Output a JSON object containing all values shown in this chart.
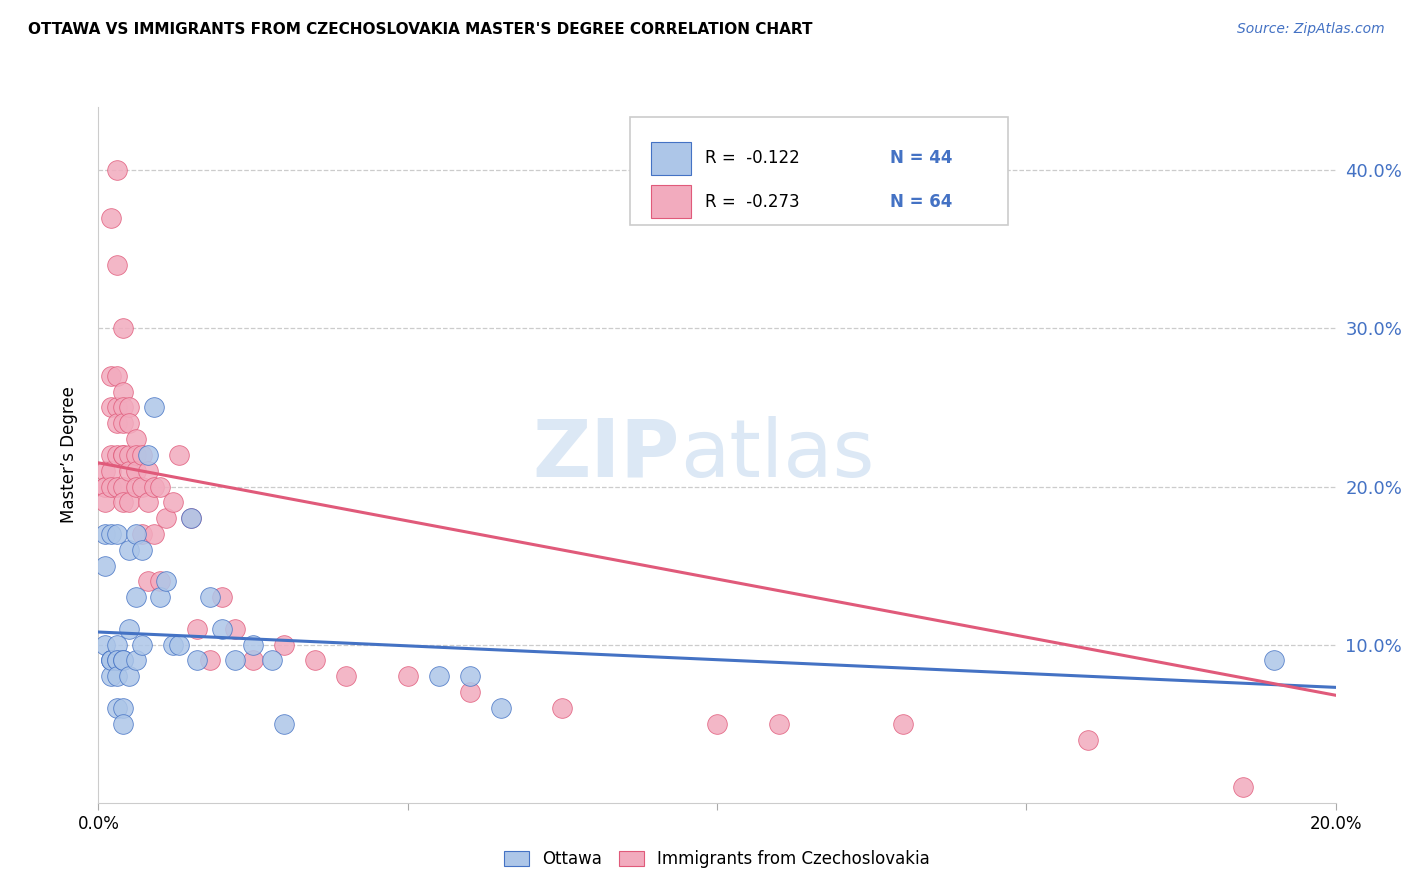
{
  "title": "OTTAWA VS IMMIGRANTS FROM CZECHOSLOVAKIA MASTER'S DEGREE CORRELATION CHART",
  "source": "Source: ZipAtlas.com",
  "ylabel": "Master’s Degree",
  "legend_label_blue": "Ottawa",
  "legend_label_pink": "Immigrants from Czechoslovakia",
  "xlim": [
    0.0,
    0.2
  ],
  "ylim": [
    0.0,
    0.44
  ],
  "yticks_right": [
    0.1,
    0.2,
    0.3,
    0.4
  ],
  "ytick_labels_right": [
    "10.0%",
    "20.0%",
    "30.0%",
    "40.0%"
  ],
  "color_blue_fill": "#adc6e8",
  "color_pink_fill": "#f2abbe",
  "color_blue_line": "#4472c4",
  "color_pink_line": "#e05a7a",
  "background_color": "#ffffff",
  "watermark_zip": "ZIP",
  "watermark_atlas": "atlas",
  "watermark_color": "#dce8f5",
  "blue_scatter_x": [
    0.001,
    0.001,
    0.001,
    0.002,
    0.002,
    0.002,
    0.002,
    0.002,
    0.003,
    0.003,
    0.003,
    0.003,
    0.003,
    0.003,
    0.004,
    0.004,
    0.004,
    0.004,
    0.005,
    0.005,
    0.005,
    0.006,
    0.006,
    0.006,
    0.007,
    0.007,
    0.008,
    0.009,
    0.01,
    0.011,
    0.012,
    0.013,
    0.015,
    0.016,
    0.018,
    0.02,
    0.022,
    0.025,
    0.028,
    0.03,
    0.055,
    0.06,
    0.065,
    0.19
  ],
  "blue_scatter_y": [
    0.17,
    0.15,
    0.1,
    0.17,
    0.09,
    0.09,
    0.08,
    0.09,
    0.17,
    0.09,
    0.1,
    0.09,
    0.08,
    0.06,
    0.09,
    0.09,
    0.06,
    0.05,
    0.16,
    0.11,
    0.08,
    0.17,
    0.13,
    0.09,
    0.16,
    0.1,
    0.22,
    0.25,
    0.13,
    0.14,
    0.1,
    0.1,
    0.18,
    0.09,
    0.13,
    0.11,
    0.09,
    0.1,
    0.09,
    0.05,
    0.08,
    0.08,
    0.06,
    0.09
  ],
  "pink_scatter_x": [
    0.001,
    0.001,
    0.001,
    0.001,
    0.002,
    0.002,
    0.002,
    0.002,
    0.002,
    0.002,
    0.003,
    0.003,
    0.003,
    0.003,
    0.003,
    0.003,
    0.003,
    0.004,
    0.004,
    0.004,
    0.004,
    0.004,
    0.004,
    0.004,
    0.004,
    0.005,
    0.005,
    0.005,
    0.005,
    0.005,
    0.006,
    0.006,
    0.006,
    0.006,
    0.007,
    0.007,
    0.007,
    0.008,
    0.008,
    0.008,
    0.009,
    0.009,
    0.01,
    0.01,
    0.011,
    0.012,
    0.013,
    0.015,
    0.016,
    0.018,
    0.02,
    0.022,
    0.025,
    0.03,
    0.035,
    0.04,
    0.05,
    0.06,
    0.075,
    0.1,
    0.11,
    0.13,
    0.16,
    0.185
  ],
  "pink_scatter_y": [
    0.21,
    0.2,
    0.2,
    0.19,
    0.37,
    0.27,
    0.25,
    0.22,
    0.21,
    0.2,
    0.4,
    0.34,
    0.27,
    0.25,
    0.24,
    0.22,
    0.2,
    0.3,
    0.26,
    0.25,
    0.24,
    0.22,
    0.22,
    0.2,
    0.19,
    0.25,
    0.24,
    0.22,
    0.21,
    0.19,
    0.23,
    0.22,
    0.21,
    0.2,
    0.22,
    0.2,
    0.17,
    0.21,
    0.19,
    0.14,
    0.2,
    0.17,
    0.2,
    0.14,
    0.18,
    0.19,
    0.22,
    0.18,
    0.11,
    0.09,
    0.13,
    0.11,
    0.09,
    0.1,
    0.09,
    0.08,
    0.08,
    0.07,
    0.06,
    0.05,
    0.05,
    0.05,
    0.04,
    0.01
  ],
  "blue_trendline_x": [
    0.0,
    0.2
  ],
  "blue_trendline_y": [
    0.108,
    0.073
  ],
  "pink_trendline_x": [
    0.0,
    0.2
  ],
  "pink_trendline_y": [
    0.215,
    0.068
  ]
}
